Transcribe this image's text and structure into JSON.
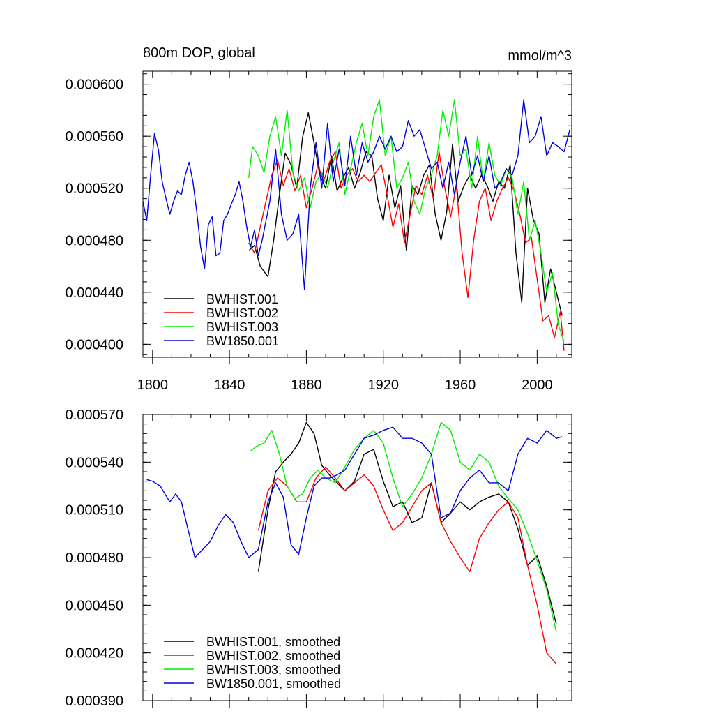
{
  "colors": {
    "BWHIST.001": "#000000",
    "BWHIST.002": "#ff0000",
    "BWHIST.003": "#00ee00",
    "BW1850.001": "#0000dd"
  },
  "chart_data": [
    {
      "type": "line",
      "title": "800m DOP, global",
      "units": "mmol/m^3",
      "xlabel": "",
      "ylabel": "",
      "xlim": [
        1795,
        2018
      ],
      "ylim": [
        0.00039,
        0.00061
      ],
      "xticks": [
        1800,
        1840,
        1880,
        1920,
        1960,
        2000
      ],
      "xtick_labels": [
        "1800",
        "1840",
        "1880",
        "1920",
        "1960",
        "2000"
      ],
      "yticks": [
        0.0004,
        0.00044,
        0.00048,
        0.00052,
        0.00056,
        0.0006
      ],
      "ytick_labels": [
        "0.000400",
        "0.000440",
        "0.000480",
        "0.000520",
        "0.000560",
        "0.000600"
      ],
      "legend_position": "bottom-left",
      "series": [
        {
          "name": "BWHIST.001",
          "x": [
            1850,
            1853,
            1856,
            1858,
            1860,
            1863,
            1866,
            1869,
            1872,
            1875,
            1878,
            1881,
            1884,
            1887,
            1890,
            1893,
            1896,
            1899,
            1902,
            1905,
            1908,
            1911,
            1914,
            1917,
            1920,
            1923,
            1926,
            1929,
            1932,
            1935,
            1938,
            1941,
            1944,
            1947,
            1950,
            1953,
            1956,
            1959,
            1962,
            1965,
            1968,
            1971,
            1974,
            1977,
            1980,
            1983,
            1986,
            1989,
            1992,
            1995,
            1998,
            2001,
            2004,
            2007,
            2010,
            2013
          ],
          "y": [
            0.000472,
            0.000476,
            0.00046,
            0.000456,
            0.000452,
            0.00048,
            0.000515,
            0.000547,
            0.000538,
            0.00052,
            0.000559,
            0.000578,
            0.000555,
            0.00053,
            0.00052,
            0.000545,
            0.000518,
            0.000528,
            0.000536,
            0.00052,
            0.000532,
            0.000548,
            0.000545,
            0.000512,
            0.000495,
            0.00053,
            0.000505,
            0.000522,
            0.000472,
            0.000522,
            0.000515,
            0.00053,
            0.000538,
            0.0005,
            0.00048,
            0.000502,
            0.000554,
            0.00051,
            0.000522,
            0.00053,
            0.00052,
            0.00053,
            0.000522,
            0.00051,
            0.000525,
            0.00052,
            0.000538,
            0.00047,
            0.000432,
            0.00052,
            0.000496,
            0.000485,
            0.000432,
            0.000458,
            0.00044,
            0.000422
          ]
        },
        {
          "name": "BWHIST.002",
          "x": [
            1850,
            1853,
            1856,
            1859,
            1862,
            1865,
            1868,
            1871,
            1874,
            1877,
            1880,
            1883,
            1886,
            1889,
            1892,
            1895,
            1898,
            1901,
            1904,
            1907,
            1910,
            1913,
            1916,
            1919,
            1922,
            1925,
            1928,
            1931,
            1934,
            1937,
            1940,
            1943,
            1946,
            1949,
            1952,
            1955,
            1958,
            1961,
            1964,
            1967,
            1970,
            1973,
            1976,
            1979,
            1982,
            1985,
            1988,
            1991,
            1994,
            1997,
            2000,
            2003,
            2006,
            2009,
            2012,
            2014
          ],
          "y": [
            0.000478,
            0.00047,
            0.00049,
            0.00051,
            0.00053,
            0.000542,
            0.000522,
            0.000535,
            0.000518,
            0.00053,
            0.000505,
            0.00052,
            0.000538,
            0.000525,
            0.00054,
            0.000548,
            0.00052,
            0.00053,
            0.000535,
            0.000525,
            0.00053,
            0.000525,
            0.000532,
            0.000538,
            0.000515,
            0.00049,
            0.000508,
            0.000478,
            0.0005,
            0.000522,
            0.000515,
            0.00053,
            0.000512,
            0.000548,
            0.00052,
            0.000498,
            0.000522,
            0.00047,
            0.000436,
            0.00048,
            0.00051,
            0.00052,
            0.000495,
            0.00051,
            0.00052,
            0.000528,
            0.000518,
            0.0005,
            0.000478,
            0.000482,
            0.00045,
            0.000418,
            0.000422,
            0.000405,
            0.000425,
            0.000395
          ]
        },
        {
          "name": "BWHIST.003",
          "x": [
            1850,
            1852,
            1855,
            1858,
            1861,
            1864,
            1867,
            1870,
            1873,
            1876,
            1879,
            1882,
            1885,
            1888,
            1891,
            1894,
            1897,
            1900,
            1903,
            1906,
            1909,
            1912,
            1915,
            1918,
            1921,
            1924,
            1927,
            1930,
            1933,
            1936,
            1939,
            1942,
            1945,
            1948,
            1951,
            1954,
            1957,
            1960,
            1963,
            1966,
            1969,
            1972,
            1975,
            1978,
            1981,
            1984,
            1987,
            1990,
            1993,
            1996,
            1999,
            2002,
            2005,
            2008,
            2011,
            2014
          ],
          "y": [
            0.000528,
            0.000552,
            0.000545,
            0.000532,
            0.00056,
            0.000575,
            0.000545,
            0.00058,
            0.000532,
            0.000518,
            0.000528,
            0.000505,
            0.000525,
            0.000532,
            0.00052,
            0.00054,
            0.000555,
            0.000515,
            0.000535,
            0.000555,
            0.00057,
            0.000545,
            0.000575,
            0.000588,
            0.000545,
            0.00056,
            0.00052,
            0.000528,
            0.00054,
            0.00051,
            0.0005,
            0.00052,
            0.00053,
            0.000545,
            0.00058,
            0.00056,
            0.000588,
            0.000545,
            0.00055,
            0.00052,
            0.00056,
            0.000525,
            0.000555,
            0.00053,
            0.000522,
            0.000535,
            0.000528,
            0.0005,
            0.000525,
            0.00048,
            0.000495,
            0.00047,
            0.00044,
            0.000455,
            0.000415,
            0.000402
          ]
        },
        {
          "name": "BW1850.001",
          "x": [
            1795,
            1797,
            1799,
            1801,
            1803,
            1805,
            1807,
            1809,
            1811,
            1813,
            1815,
            1817,
            1819,
            1821,
            1823,
            1825,
            1827,
            1829,
            1831,
            1833,
            1835,
            1837,
            1839,
            1841,
            1843,
            1845,
            1847,
            1849,
            1851,
            1853,
            1855,
            1857,
            1859,
            1861,
            1864,
            1867,
            1870,
            1873,
            1876,
            1879,
            1882,
            1885,
            1888,
            1891,
            1894,
            1897,
            1900,
            1903,
            1906,
            1909,
            1912,
            1915,
            1918,
            1921,
            1924,
            1927,
            1930,
            1933,
            1936,
            1939,
            1942,
            1945,
            1948,
            1951,
            1954,
            1957,
            1960,
            1963,
            1966,
            1969,
            1972,
            1975,
            1978,
            1981,
            1984,
            1987,
            1990,
            1993,
            1996,
            1999,
            2002,
            2005,
            2008,
            2011,
            2014,
            2017
          ],
          "y": [
            0.00051,
            0.000495,
            0.00053,
            0.000562,
            0.00055,
            0.000525,
            0.000512,
            0.0005,
            0.00051,
            0.000518,
            0.000515,
            0.00053,
            0.00054,
            0.000525,
            0.000502,
            0.000475,
            0.000458,
            0.000492,
            0.000498,
            0.000468,
            0.00047,
            0.000495,
            0.0005,
            0.000508,
            0.000515,
            0.000525,
            0.00051,
            0.00049,
            0.000475,
            0.000488,
            0.000468,
            0.00048,
            0.000495,
            0.00051,
            0.00055,
            0.0005,
            0.00048,
            0.000485,
            0.0005,
            0.000442,
            0.00052,
            0.000555,
            0.00052,
            0.00057,
            0.000525,
            0.00055,
            0.000522,
            0.00056,
            0.00053,
            0.000555,
            0.00054,
            0.000548,
            0.00056,
            0.00055,
            0.00056,
            0.000548,
            0.000552,
            0.000572,
            0.00056,
            0.000565,
            0.00055,
            0.000535,
            0.00054,
            0.00052,
            0.00054,
            0.000515,
            0.00054,
            0.00056,
            0.00053,
            0.000545,
            0.000525,
            0.000545,
            0.00052,
            0.000525,
            0.000535,
            0.00053,
            0.000545,
            0.000588,
            0.000555,
            0.00056,
            0.000575,
            0.000545,
            0.000555,
            0.000552,
            0.000548,
            0.000565
          ]
        }
      ]
    },
    {
      "type": "line",
      "title": "",
      "xlabel": "",
      "ylabel": "",
      "xlim": [
        1795,
        2018
      ],
      "ylim": [
        0.00039,
        0.00057
      ],
      "xticks": [
        1800,
        1840,
        1880,
        1920,
        1960,
        2000
      ],
      "yticks": [
        0.00039,
        0.00042,
        0.00045,
        0.00048,
        0.00051,
        0.00054,
        0.00057
      ],
      "ytick_labels": [
        "0.000390",
        "0.000420",
        "0.000450",
        "0.000480",
        "0.000510",
        "0.000540",
        "0.000570"
      ],
      "legend_position": "bottom-left",
      "series": [
        {
          "name": "BWHIST.001, smoothed",
          "x": [
            1855,
            1860,
            1864,
            1868,
            1872,
            1876,
            1880,
            1884,
            1888,
            1892,
            1896,
            1900,
            1905,
            1910,
            1915,
            1920,
            1925,
            1930,
            1935,
            1940,
            1945,
            1950,
            1955,
            1960,
            1965,
            1970,
            1975,
            1980,
            1985,
            1990,
            1995,
            2000,
            2005,
            2010
          ],
          "y": [
            0.000471,
            0.00051,
            0.000534,
            0.00054,
            0.000545,
            0.000552,
            0.000565,
            0.000558,
            0.000538,
            0.000532,
            0.000527,
            0.000522,
            0.000528,
            0.000545,
            0.000548,
            0.000528,
            0.000512,
            0.000515,
            0.000502,
            0.000505,
            0.000527,
            0.000502,
            0.000508,
            0.000515,
            0.00051,
            0.000515,
            0.000518,
            0.00052,
            0.000515,
            0.000498,
            0.000475,
            0.000481,
            0.000462,
            0.000438
          ]
        },
        {
          "name": "BWHIST.002, smoothed",
          "x": [
            1855,
            1860,
            1865,
            1870,
            1875,
            1880,
            1885,
            1890,
            1895,
            1900,
            1905,
            1910,
            1915,
            1920,
            1925,
            1930,
            1935,
            1940,
            1945,
            1950,
            1955,
            1960,
            1965,
            1970,
            1975,
            1980,
            1985,
            1990,
            1995,
            2000,
            2005,
            2010
          ],
          "y": [
            0.000497,
            0.000522,
            0.00053,
            0.000525,
            0.000515,
            0.000515,
            0.00053,
            0.000537,
            0.00053,
            0.000522,
            0.000527,
            0.000532,
            0.000525,
            0.00051,
            0.000497,
            0.000502,
            0.000512,
            0.000522,
            0.000527,
            0.000502,
            0.00049,
            0.00048,
            0.000471,
            0.000492,
            0.000502,
            0.00051,
            0.000515,
            0.000505,
            0.000475,
            0.00045,
            0.00042,
            0.000413
          ]
        },
        {
          "name": "BWHIST.003, smoothed",
          "x": [
            1851,
            1854,
            1858,
            1862,
            1866,
            1870,
            1874,
            1878,
            1882,
            1886,
            1890,
            1895,
            1900,
            1905,
            1910,
            1915,
            1920,
            1925,
            1930,
            1935,
            1940,
            1945,
            1950,
            1955,
            1960,
            1965,
            1970,
            1975,
            1980,
            1985,
            1990,
            1995,
            2000,
            2005,
            2010
          ],
          "y": [
            0.000547,
            0.00055,
            0.000552,
            0.00056,
            0.000545,
            0.000525,
            0.000517,
            0.00052,
            0.00053,
            0.000535,
            0.00053,
            0.000527,
            0.000537,
            0.000548,
            0.000555,
            0.00056,
            0.000552,
            0.00053,
            0.000512,
            0.00052,
            0.00053,
            0.000545,
            0.000565,
            0.00056,
            0.00054,
            0.000535,
            0.000545,
            0.00054,
            0.000525,
            0.000517,
            0.00051,
            0.000495,
            0.000478,
            0.00046,
            0.000433
          ]
        },
        {
          "name": "BW1850.001, smoothed",
          "x": [
            1797,
            1800,
            1804,
            1809,
            1812,
            1815,
            1818,
            1822,
            1826,
            1830,
            1834,
            1838,
            1842,
            1846,
            1850,
            1855,
            1860,
            1864,
            1868,
            1872,
            1876,
            1880,
            1884,
            1888,
            1892,
            1896,
            1900,
            1905,
            1910,
            1915,
            1920,
            1925,
            1930,
            1935,
            1940,
            1945,
            1950,
            1955,
            1960,
            1965,
            1970,
            1975,
            1980,
            1985,
            1990,
            1995,
            2000,
            2005,
            2010,
            2013
          ],
          "y": [
            0.000529,
            0.000528,
            0.000525,
            0.000515,
            0.00052,
            0.000515,
            0.0005,
            0.00048,
            0.000485,
            0.00049,
            0.0005,
            0.000507,
            0.000502,
            0.00049,
            0.00048,
            0.000485,
            0.000515,
            0.000527,
            0.000518,
            0.000488,
            0.000482,
            0.000505,
            0.000525,
            0.00053,
            0.00053,
            0.000532,
            0.000535,
            0.000545,
            0.000555,
            0.000557,
            0.00056,
            0.000562,
            0.000555,
            0.000555,
            0.000552,
            0.000545,
            0.000505,
            0.000508,
            0.000522,
            0.00053,
            0.000535,
            0.000527,
            0.000527,
            0.000522,
            0.000545,
            0.000555,
            0.000552,
            0.00056,
            0.000555,
            0.000556
          ]
        }
      ]
    }
  ]
}
